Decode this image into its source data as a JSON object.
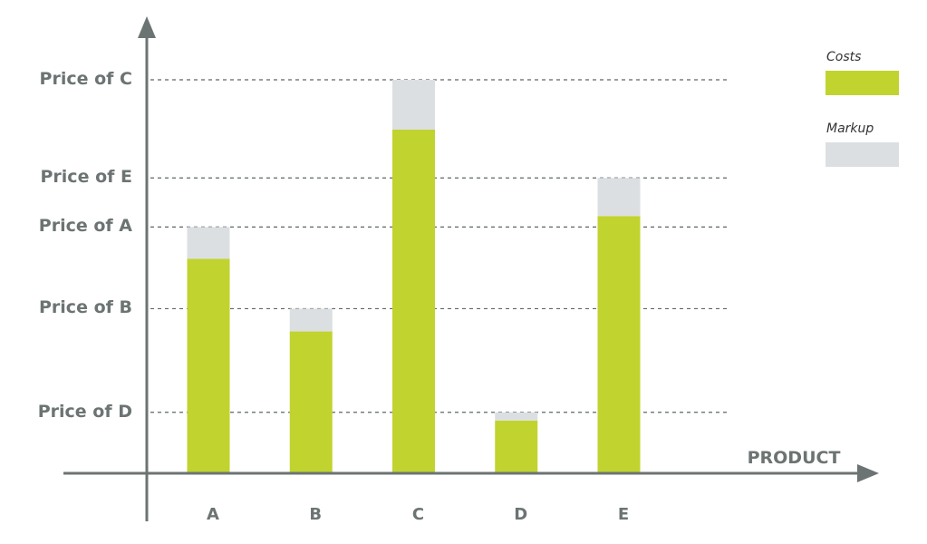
{
  "chart_data": {
    "type": "bar",
    "stacked": true,
    "xlabel": "PRODUCT",
    "categories": [
      "A",
      "B",
      "C",
      "D",
      "E"
    ],
    "ytick_labels": [
      {
        "label": "Price of C",
        "value": 100
      },
      {
        "label": "Price of E",
        "value": 75
      },
      {
        "label": "Price of A",
        "value": 62.5
      },
      {
        "label": "Price of B",
        "value": 41.7
      },
      {
        "label": "Price of D",
        "value": 15.3
      }
    ],
    "series": [
      {
        "name": "Costs",
        "color": "#c1d32f",
        "values": [
          54.4,
          35.9,
          87.3,
          13.2,
          65.3
        ]
      },
      {
        "name": "Markup",
        "color": "#dcdfe2",
        "values": [
          8.1,
          5.8,
          12.7,
          2.1,
          9.7
        ]
      }
    ],
    "ylim": [
      0,
      100
    ],
    "grid": "horizontal dashed at price levels",
    "legend": {
      "position": "top-right"
    }
  }
}
